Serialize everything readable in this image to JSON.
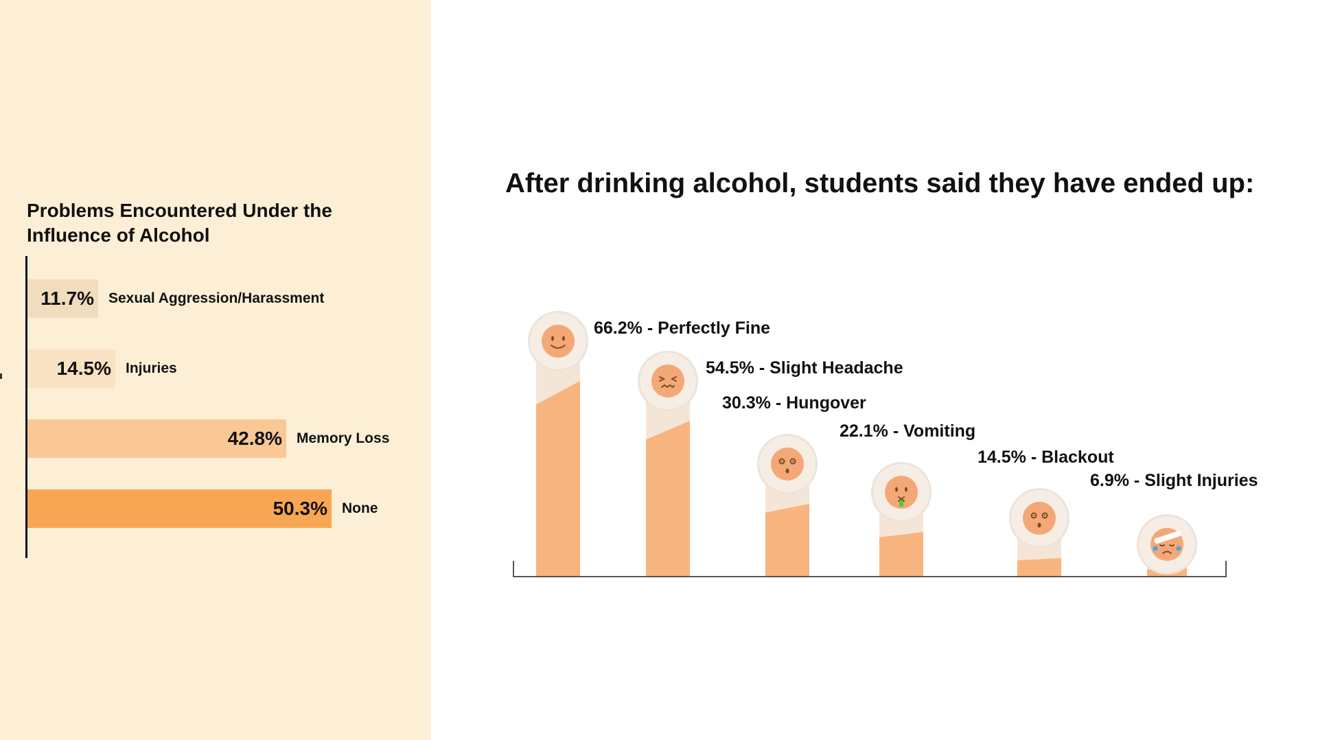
{
  "colors": {
    "left_bg": "#fdefd6",
    "bar_sexual": "#f1dcbd",
    "bar_injuries": "#f9e2c4",
    "bar_memory": "#f9c895",
    "bar_none": "#f8a653",
    "pillar_back": "#f5e5d7",
    "pillar_fill": "#f8b47f",
    "face": "#f4a877"
  },
  "left_chart": {
    "title": "Problems Encountered Under the Influence of Alcohol",
    "bars": [
      {
        "value_label": "11.7%",
        "label": "Sexual Aggression/Harassment"
      },
      {
        "value_label": "14.5%",
        "label": "Injuries"
      },
      {
        "value_label": "42.8%",
        "label": "Memory Loss"
      },
      {
        "value_label": "50.3%",
        "label": "None"
      }
    ]
  },
  "right_chart": {
    "title": "After drinking alcohol, students said they have ended up:",
    "items": [
      {
        "label": "66.2% - Perfectly Fine",
        "icon": "smiling-face-icon"
      },
      {
        "label": "54.5% - Slight Headache",
        "icon": "grimacing-face-icon"
      },
      {
        "label": "30.3% - Hungover",
        "icon": "dizzy-face-icon"
      },
      {
        "label": "22.1% - Vomiting",
        "icon": "vomiting-face-icon"
      },
      {
        "label": "14.5% - Blackout",
        "icon": "dizzy-face-icon"
      },
      {
        "label": "6.9% - Slight Injuries",
        "icon": "bandaged-crying-face-icon"
      }
    ]
  },
  "chart_data": [
    {
      "type": "bar",
      "orientation": "horizontal",
      "title": "Problems Encountered Under the Influence of Alcohol",
      "categories": [
        "Sexual Aggression/Harassment",
        "Injuries",
        "Memory Loss",
        "None"
      ],
      "values": [
        11.7,
        14.5,
        42.8,
        50.3
      ],
      "xlabel": "",
      "ylabel": ""
    },
    {
      "type": "bar",
      "orientation": "vertical",
      "title": "After drinking alcohol, students said they have ended up:",
      "categories": [
        "Perfectly Fine",
        "Slight Headache",
        "Hungover",
        "Vomiting",
        "Blackout",
        "Slight Injuries"
      ],
      "values": [
        66.2,
        54.5,
        30.3,
        22.1,
        14.5,
        6.9
      ],
      "xlabel": "",
      "ylabel": ""
    }
  ]
}
